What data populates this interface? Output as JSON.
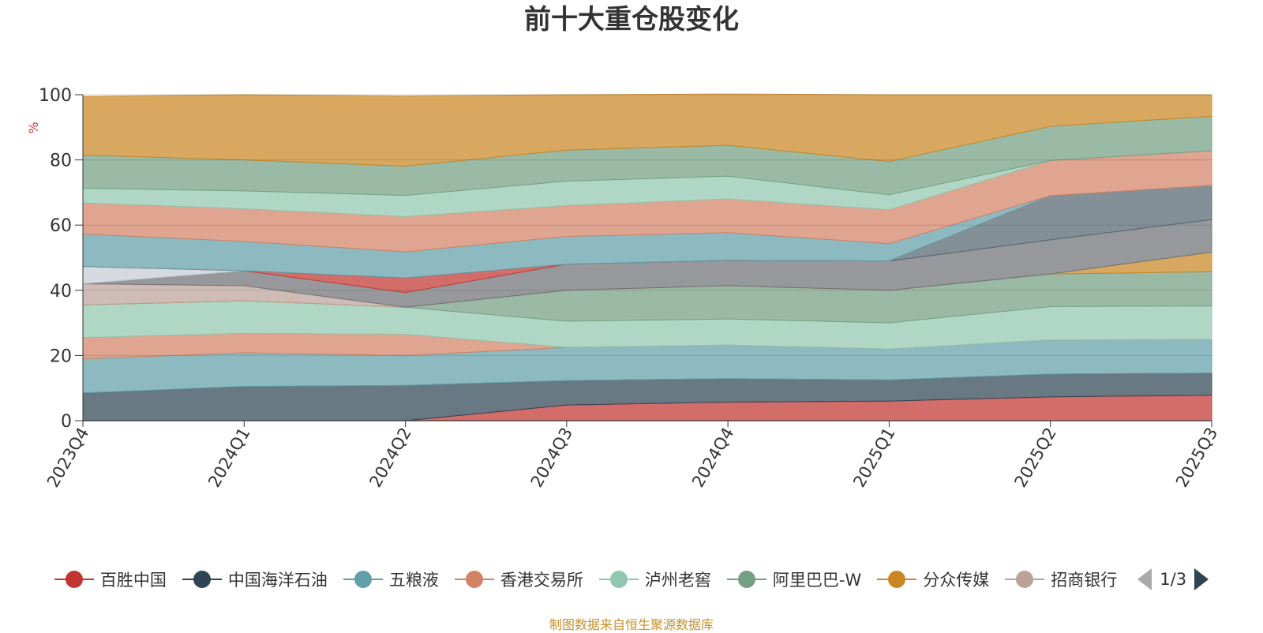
{
  "chart_data": {
    "type": "area",
    "stacked": true,
    "title": "前十大重仓股变化",
    "ylabel": "%",
    "ylim": [
      0,
      100
    ],
    "yticks": [
      0,
      20,
      40,
      60,
      80,
      100
    ],
    "categories": [
      "2023Q4",
      "2024Q1",
      "2024Q2",
      "2024Q3",
      "2024Q4",
      "2025Q1",
      "2025Q2",
      "2025Q3"
    ],
    "series": [
      {
        "name": "百胜中国",
        "color": "#c23531",
        "values": [
          0,
          0,
          0,
          4.8,
          5.7,
          6.0,
          7.3,
          7.8
        ]
      },
      {
        "name": "中国海洋石油",
        "color": "#2f4554",
        "values": [
          8.5,
          10.5,
          10.8,
          7.5,
          7.2,
          6.5,
          7.0,
          6.8
        ]
      },
      {
        "name": "五粮液",
        "color": "#61a0a8",
        "values": [
          10.5,
          10.3,
          9.2,
          10.2,
          10.3,
          9.5,
          10.5,
          10.3
        ]
      },
      {
        "name": "香港交易所",
        "color": "#d48265",
        "values": [
          6.5,
          6.0,
          6.5,
          0,
          0,
          0,
          0,
          0
        ]
      },
      {
        "name": "泸州老窖",
        "color": "#91c7ae",
        "values": [
          10.0,
          10.0,
          8.3,
          8.0,
          8.0,
          8.0,
          10.2,
          10.3
        ]
      },
      {
        "name": "阿里巴巴-W",
        "color": "#749f83",
        "values": [
          0,
          0,
          0,
          9.5,
          10.2,
          10.0,
          10.0,
          10.5
        ]
      },
      {
        "name": "分众传媒",
        "color": "#ca8622",
        "values": [
          0,
          0,
          0,
          0,
          0,
          0,
          0,
          6.0
        ]
      },
      {
        "name": "招商银行",
        "color": "#bda29a",
        "values": [
          6.5,
          4.6,
          0,
          0,
          0,
          0,
          0,
          0
        ]
      },
      {
        "name": "",
        "color": "#6e7074",
        "values": [
          0,
          4.6,
          4.5,
          8.0,
          7.8,
          9.0,
          10.5,
          10.0
        ]
      },
      {
        "name": "",
        "color": "#546570",
        "values": [
          0,
          0,
          0,
          0,
          0,
          0,
          13.5,
          10.5
        ]
      },
      {
        "name": "",
        "color": "#c4ccd3",
        "values": [
          5.3,
          0,
          0,
          0,
          0,
          0,
          0,
          0
        ]
      },
      {
        "name": "",
        "color": "#c23531",
        "values": [
          0,
          0,
          4.5,
          0,
          0,
          0,
          0,
          0
        ]
      },
      {
        "name": "",
        "color": "#61a0a8",
        "values": [
          10.0,
          9.0,
          8.0,
          8.5,
          8.5,
          5.3,
          0,
          0
        ]
      },
      {
        "name": "",
        "color": "#d48265",
        "values": [
          9.5,
          10.0,
          10.8,
          9.5,
          10.3,
          10.4,
          10.8,
          10.6
        ]
      },
      {
        "name": "",
        "color": "#91c7ae",
        "values": [
          4.5,
          5.5,
          6.5,
          7.5,
          7.0,
          4.6,
          0,
          0
        ]
      },
      {
        "name": "",
        "color": "#749f83",
        "values": [
          10.2,
          9.5,
          9.0,
          9.5,
          9.5,
          10.2,
          10.5,
          10.6
        ]
      },
      {
        "name": "",
        "color": "#ca8622",
        "values": [
          18.0,
          20.0,
          21.5,
          17.0,
          15.7,
          20.5,
          9.7,
          6.6
        ]
      }
    ]
  },
  "legend": {
    "page_text": "1/3"
  },
  "source_text": "制图数据来自恒生聚源数据库"
}
